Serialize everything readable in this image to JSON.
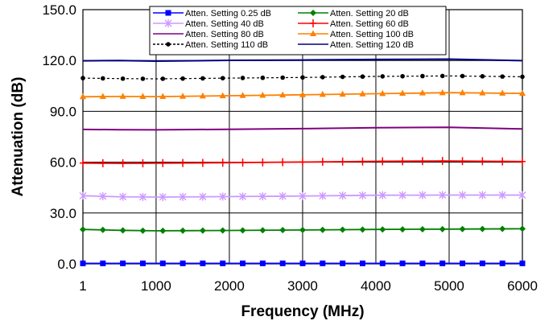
{
  "chart_data": {
    "type": "line",
    "xlabel": "Frequency (MHz)",
    "ylabel": "Attenuation (dB)",
    "xlim": [
      1,
      6000
    ],
    "ylim": [
      0,
      150
    ],
    "xticks": [
      1,
      1000,
      2000,
      3000,
      4000,
      5000,
      6000
    ],
    "xtick_labels": [
      "1",
      "1000",
      "2000",
      "3000",
      "4000",
      "5000",
      "6000"
    ],
    "yticks": [
      0,
      30,
      60,
      90,
      120,
      150
    ],
    "ytick_labels": [
      "0.0",
      "30.0",
      "60.0",
      "90.0",
      "120.0",
      "150.0"
    ],
    "grid": true,
    "legend_position": "top",
    "series": [
      {
        "name": "Atten. Setting 0.25 dB",
        "color": "#0000ff",
        "marker": "square",
        "points": [
          [
            1,
            0.3
          ],
          [
            1000,
            0.3
          ],
          [
            2000,
            0.3
          ],
          [
            3000,
            0.3
          ],
          [
            4000,
            0.3
          ],
          [
            5000,
            0.3
          ],
          [
            6000,
            0.3
          ]
        ]
      },
      {
        "name": "Atten. Setting 20 dB",
        "color": "#008000",
        "marker": "diamond",
        "points": [
          [
            1,
            20.3
          ],
          [
            500,
            19.8
          ],
          [
            1000,
            19.5
          ],
          [
            1500,
            19.6
          ],
          [
            2000,
            19.7
          ],
          [
            3000,
            20.0
          ],
          [
            4000,
            20.3
          ],
          [
            5000,
            20.5
          ],
          [
            6000,
            20.7
          ]
        ]
      },
      {
        "name": "Atten. Setting 40 dB",
        "color": "#cc99ff",
        "marker": "asterisk",
        "points": [
          [
            1,
            40.2
          ],
          [
            500,
            39.6
          ],
          [
            1000,
            39.4
          ],
          [
            2000,
            39.7
          ],
          [
            3000,
            40.0
          ],
          [
            4000,
            40.5
          ],
          [
            5000,
            40.6
          ],
          [
            6000,
            40.6
          ]
        ]
      },
      {
        "name": "Atten. Setting 60 dB",
        "color": "#ff0000",
        "marker": "plus",
        "points": [
          [
            1,
            59.5
          ],
          [
            500,
            59.3
          ],
          [
            1000,
            59.4
          ],
          [
            2000,
            59.7
          ],
          [
            3000,
            60.1
          ],
          [
            4000,
            60.5
          ],
          [
            5000,
            60.7
          ],
          [
            6000,
            60.4
          ]
        ]
      },
      {
        "name": "Atten. Setting 80 dB",
        "color": "#800080",
        "marker": "none",
        "points": [
          [
            1,
            79.3
          ],
          [
            500,
            79.2
          ],
          [
            1000,
            79.1
          ],
          [
            2000,
            79.4
          ],
          [
            3000,
            79.8
          ],
          [
            4000,
            80.3
          ],
          [
            5000,
            80.6
          ],
          [
            6000,
            79.6
          ]
        ]
      },
      {
        "name": "Atten. Setting 100 dB",
        "color": "#ff8000",
        "marker": "triangle",
        "points": [
          [
            1,
            98.6
          ],
          [
            500,
            98.8
          ],
          [
            1000,
            98.7
          ],
          [
            2000,
            99.2
          ],
          [
            3000,
            99.8
          ],
          [
            4000,
            100.4
          ],
          [
            5000,
            101.0
          ],
          [
            6000,
            100.6
          ]
        ]
      },
      {
        "name": "Atten. Setting 110 dB",
        "color": "#000000",
        "marker": "circle",
        "dashed": true,
        "points": [
          [
            1,
            109.6
          ],
          [
            500,
            109.3
          ],
          [
            1000,
            109.2
          ],
          [
            2000,
            109.6
          ],
          [
            3000,
            110.0
          ],
          [
            4000,
            110.6
          ],
          [
            5000,
            110.9
          ],
          [
            6000,
            110.4
          ]
        ]
      },
      {
        "name": "Atten. Setting 120 dB",
        "color": "#000080",
        "marker": "none",
        "points": [
          [
            1,
            119.8
          ],
          [
            500,
            120.0
          ],
          [
            1000,
            119.6
          ],
          [
            2000,
            120.1
          ],
          [
            3000,
            120.3
          ],
          [
            4000,
            120.6
          ],
          [
            5000,
            120.8
          ],
          [
            6000,
            119.9
          ]
        ]
      }
    ]
  }
}
